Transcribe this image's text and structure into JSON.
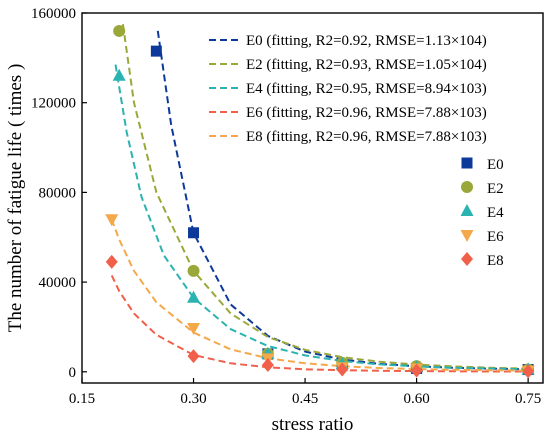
{
  "chart_data": {
    "type": "scatter",
    "xlabel": "stress ratio",
    "ylabel": "The number of fatigue life ( times )",
    "xlim": [
      0.15,
      0.77
    ],
    "ylim": [
      -5000,
      160000
    ],
    "xticks": [
      "0.15",
      "0.30",
      "0.45",
      "0.60",
      "0.75"
    ],
    "xtick_values": [
      0.15,
      0.3,
      0.45,
      0.6,
      0.75
    ],
    "yticks": [
      "0",
      "40000",
      "80000",
      "120000",
      "160000"
    ],
    "ytick_values": [
      0,
      40000,
      80000,
      120000,
      160000
    ],
    "grid": false,
    "legend_position": "top-right",
    "fit_legend": [
      {
        "name": "E0",
        "label": "E0 (fitting, R2=0.92, RMSE=1.13×104)",
        "color": "#0d3a9a"
      },
      {
        "name": "E2",
        "label": "E2 (fitting, R2=0.93, RMSE=1.05×104)",
        "color": "#9aa83a"
      },
      {
        "name": "E4",
        "label": "E4 (fitting, R2=0.95, RMSE=8.94×103)",
        "color": "#2ab3b0"
      },
      {
        "name": "E6",
        "label": "E6 (fitting, R2=0.96, RMSE=7.88×103)",
        "color": "#f0604a"
      },
      {
        "name": "E8",
        "label": "E8 (fitting, R2=0.96, RMSE=7.88×103)",
        "color": "#f5a84a"
      }
    ],
    "series": [
      {
        "name": "E0",
        "marker": "square",
        "color": "#0d3a9a",
        "x": [
          0.25,
          0.3,
          0.4,
          0.5,
          0.6,
          0.75
        ],
        "y": [
          143000,
          62000,
          8000,
          3000,
          1500,
          1000
        ],
        "fit_color": "#0d3a9a",
        "fit_x": [
          0.252,
          0.27,
          0.3,
          0.35,
          0.4,
          0.45,
          0.5,
          0.55,
          0.6,
          0.65,
          0.7,
          0.75
        ],
        "fit_y": [
          152000,
          110000,
          62000,
          30000,
          16000,
          9000,
          5500,
          3500,
          2500,
          1800,
          1400,
          1100
        ]
      },
      {
        "name": "E2",
        "marker": "circle",
        "color": "#9aa83a",
        "x": [
          0.2,
          0.3,
          0.4,
          0.5,
          0.6,
          0.75
        ],
        "y": [
          152000,
          45000,
          8000,
          4000,
          2500,
          1000
        ],
        "fit_color": "#9aa83a",
        "fit_x": [
          0.205,
          0.22,
          0.25,
          0.3,
          0.35,
          0.4,
          0.45,
          0.5,
          0.55,
          0.6,
          0.65,
          0.7,
          0.75
        ],
        "fit_y": [
          155000,
          120000,
          80000,
          45000,
          26000,
          15500,
          9800,
          6500,
          4500,
          3200,
          2400,
          1800,
          1400
        ]
      },
      {
        "name": "E4",
        "marker": "triangle",
        "color": "#2ab3b0",
        "x": [
          0.2,
          0.3,
          0.4,
          0.5,
          0.6,
          0.75
        ],
        "y": [
          132000,
          33000,
          8000,
          3500,
          2000,
          1000
        ],
        "fit_color": "#2ab3b0",
        "fit_x": [
          0.195,
          0.21,
          0.23,
          0.26,
          0.3,
          0.35,
          0.4,
          0.45,
          0.5,
          0.55,
          0.6,
          0.65,
          0.7,
          0.75
        ],
        "fit_y": [
          137000,
          107000,
          78000,
          52000,
          33000,
          19000,
          11500,
          7300,
          4800,
          3300,
          2400,
          1800,
          1400,
          1100
        ]
      },
      {
        "name": "E6",
        "marker": "triangle-down",
        "color": "#f5a84a",
        "x": [
          0.19,
          0.3,
          0.4,
          0.5,
          0.6,
          0.75
        ],
        "y": [
          68000,
          19500,
          6000,
          2000,
          1500,
          500
        ],
        "fit_color": "#f0604a",
        "fit_x": [
          0.19,
          0.2,
          0.22,
          0.25,
          0.3,
          0.35,
          0.4,
          0.45,
          0.5,
          0.55,
          0.6,
          0.65,
          0.7,
          0.75
        ],
        "fit_y": [
          43000,
          36000,
          26000,
          16500,
          7500,
          3800,
          2000,
          1100,
          700,
          450,
          300,
          200,
          150,
          120
        ]
      },
      {
        "name": "E8",
        "marker": "diamond",
        "color": "#f0604a",
        "x": [
          0.19,
          0.3,
          0.4,
          0.5,
          0.6,
          0.75
        ],
        "y": [
          49000,
          7000,
          3000,
          1000,
          500,
          200
        ],
        "fit_color": "#f5a84a",
        "fit_x": [
          0.19,
          0.2,
          0.22,
          0.25,
          0.3,
          0.35,
          0.4,
          0.45,
          0.5,
          0.55,
          0.6,
          0.65,
          0.7,
          0.75
        ],
        "fit_y": [
          68000,
          59000,
          45000,
          31000,
          17500,
          10000,
          6000,
          3800,
          2500,
          1700,
          1200,
          900,
          700,
          550
        ]
      }
    ]
  }
}
